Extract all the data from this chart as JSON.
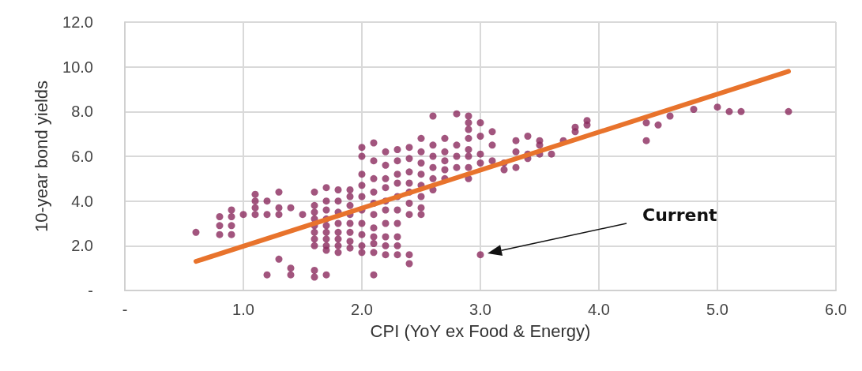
{
  "chart_data": {
    "type": "scatter",
    "xlabel": "CPI (YoY ex Food & Energy)",
    "ylabel": "10-year bond yields",
    "xlim": [
      0,
      6
    ],
    "ylim": [
      0,
      12
    ],
    "xticks": [
      {
        "value": 0,
        "label": "-"
      },
      {
        "value": 1,
        "label": "1.0"
      },
      {
        "value": 2,
        "label": "2.0"
      },
      {
        "value": 3,
        "label": "3.0"
      },
      {
        "value": 4,
        "label": "4.0"
      },
      {
        "value": 5,
        "label": "5.0"
      },
      {
        "value": 6,
        "label": "6.0"
      }
    ],
    "yticks": [
      {
        "value": 0,
        "label": "-"
      },
      {
        "value": 2,
        "label": "2.0"
      },
      {
        "value": 4,
        "label": "4.0"
      },
      {
        "value": 6,
        "label": "6.0"
      },
      {
        "value": 8,
        "label": "8.0"
      },
      {
        "value": 10,
        "label": "10.0"
      },
      {
        "value": 12,
        "label": "12.0"
      }
    ],
    "grid": true,
    "marker": "circle",
    "annotations": [
      "Current"
    ],
    "series": [
      {
        "color": "#8b2a5e",
        "x": [
          0.6,
          0.8,
          0.8,
          0.8,
          0.9,
          0.9,
          0.9,
          0.9,
          1.0,
          1.1,
          1.1,
          1.1,
          1.1,
          1.2,
          1.2,
          1.2,
          1.3,
          1.3,
          1.3,
          1.3,
          1.4,
          1.4,
          1.4,
          1.5,
          1.6,
          1.6,
          1.6,
          1.6,
          1.6,
          1.6,
          1.6,
          1.6,
          1.6,
          1.6,
          1.7,
          1.7,
          1.7,
          1.7,
          1.7,
          1.7,
          1.7,
          1.7,
          1.7,
          1.7,
          1.8,
          1.8,
          1.8,
          1.8,
          1.8,
          1.8,
          1.8,
          1.8,
          1.9,
          1.9,
          1.9,
          1.9,
          1.9,
          1.9,
          1.9,
          1.9,
          2.0,
          2.0,
          2.0,
          2.0,
          2.0,
          2.0,
          2.0,
          2.0,
          2.0,
          2.0,
          2.1,
          2.1,
          2.1,
          2.1,
          2.1,
          2.1,
          2.1,
          2.1,
          2.1,
          2.1,
          2.1,
          2.2,
          2.2,
          2.2,
          2.2,
          2.2,
          2.2,
          2.2,
          2.2,
          2.2,
          2.2,
          2.3,
          2.3,
          2.3,
          2.3,
          2.3,
          2.3,
          2.3,
          2.3,
          2.3,
          2.3,
          2.4,
          2.4,
          2.4,
          2.4,
          2.4,
          2.4,
          2.4,
          2.4,
          2.4,
          2.5,
          2.5,
          2.5,
          2.5,
          2.5,
          2.5,
          2.5,
          2.5,
          2.6,
          2.6,
          2.6,
          2.6,
          2.6,
          2.6,
          2.7,
          2.7,
          2.7,
          2.7,
          2.7,
          2.8,
          2.8,
          2.8,
          2.8,
          2.9,
          2.9,
          2.9,
          2.9,
          2.9,
          2.9,
          2.9,
          2.9,
          3.0,
          3.0,
          3.0,
          3.0,
          3.0,
          3.1,
          3.1,
          3.1,
          3.2,
          3.2,
          3.3,
          3.3,
          3.3,
          3.4,
          3.4,
          3.4,
          3.5,
          3.5,
          3.5,
          3.6,
          3.7,
          3.8,
          3.8,
          3.9,
          3.9,
          4.4,
          4.4,
          4.5,
          4.6,
          4.8,
          5.0,
          5.1,
          5.2,
          5.6
        ],
        "values": [
          2.6,
          3.3,
          2.9,
          2.5,
          3.6,
          3.3,
          2.9,
          2.5,
          3.4,
          4.3,
          4.0,
          3.7,
          3.4,
          4.0,
          3.4,
          0.7,
          4.4,
          3.7,
          3.4,
          1.4,
          3.7,
          1.0,
          0.7,
          3.4,
          4.4,
          3.8,
          3.5,
          3.2,
          2.9,
          2.6,
          2.3,
          2.0,
          0.9,
          0.6,
          4.6,
          4.0,
          3.6,
          3.2,
          2.9,
          2.6,
          2.3,
          2.0,
          1.8,
          0.7,
          4.5,
          4.0,
          3.5,
          3.0,
          2.6,
          2.3,
          2.0,
          1.7,
          4.5,
          4.2,
          3.8,
          3.4,
          3.0,
          2.6,
          2.2,
          1.9,
          6.4,
          6.0,
          5.2,
          4.7,
          4.2,
          3.6,
          3.0,
          2.5,
          2.0,
          1.7,
          6.6,
          5.8,
          5.0,
          4.4,
          3.9,
          3.4,
          2.8,
          2.4,
          2.1,
          1.7,
          0.7,
          6.2,
          5.6,
          5.0,
          4.6,
          4.0,
          3.6,
          3.0,
          2.4,
          2.0,
          1.6,
          6.3,
          5.8,
          5.2,
          4.8,
          4.2,
          3.6,
          3.0,
          2.4,
          2.0,
          1.6,
          6.4,
          5.9,
          5.3,
          4.8,
          4.4,
          3.9,
          3.4,
          1.6,
          1.2,
          6.8,
          6.2,
          5.7,
          5.2,
          4.7,
          4.2,
          3.7,
          3.4,
          7.8,
          6.5,
          6.0,
          5.5,
          5.0,
          4.5,
          6.8,
          6.2,
          5.8,
          5.4,
          5.0,
          7.9,
          6.5,
          6.0,
          5.5,
          7.8,
          7.5,
          7.2,
          6.8,
          6.3,
          6.0,
          5.5,
          5.0,
          7.5,
          6.9,
          6.1,
          5.7,
          1.6,
          7.1,
          6.5,
          5.8,
          5.7,
          5.4,
          6.7,
          6.2,
          5.5,
          6.9,
          6.1,
          5.9,
          6.7,
          6.5,
          6.1,
          6.1,
          6.7,
          7.3,
          7.1,
          7.6,
          7.4,
          7.5,
          6.7,
          7.4,
          7.8,
          8.1,
          8.2,
          8.0,
          8.0,
          8.0
        ]
      },
      {
        "type": "line",
        "color": "#e8732c",
        "marker": "none",
        "x": [
          0.6,
          5.6
        ],
        "values": [
          1.3,
          9.8
        ]
      }
    ]
  }
}
